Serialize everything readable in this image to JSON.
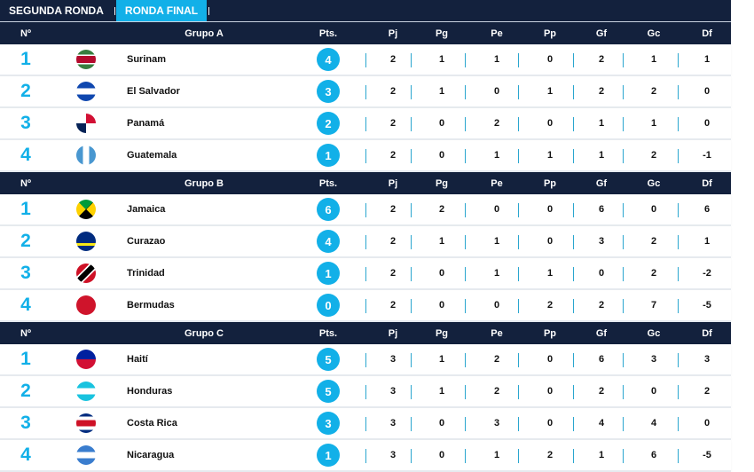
{
  "tabs": [
    {
      "label": "SEGUNDA RONDA",
      "active": false
    },
    {
      "label": "RONDA FINAL",
      "active": true
    }
  ],
  "columns": {
    "no": "Nº",
    "pts": "Pts.",
    "pj": "Pj",
    "pg": "Pg",
    "pe": "Pe",
    "pp": "Pp",
    "gf": "Gf",
    "gc": "Gc",
    "df": "Df"
  },
  "colors": {
    "header": "#13213d",
    "accent": "#12b0e8"
  },
  "groups": [
    {
      "name": "Grupo A",
      "rows": [
        {
          "pos": "1",
          "flag": "suriname-flag",
          "team": "Surinam",
          "pts": "4",
          "pj": "2",
          "pg": "1",
          "pe": "1",
          "pp": "0",
          "gf": "2",
          "gc": "1",
          "df": "1"
        },
        {
          "pos": "2",
          "flag": "el-salvador-flag",
          "team": "El Salvador",
          "pts": "3",
          "pj": "2",
          "pg": "1",
          "pe": "0",
          "pp": "1",
          "gf": "2",
          "gc": "2",
          "df": "0"
        },
        {
          "pos": "3",
          "flag": "panama-flag",
          "team": "Panamá",
          "pts": "2",
          "pj": "2",
          "pg": "0",
          "pe": "2",
          "pp": "0",
          "gf": "1",
          "gc": "1",
          "df": "0"
        },
        {
          "pos": "4",
          "flag": "guatemala-flag",
          "team": "Guatemala",
          "pts": "1",
          "pj": "2",
          "pg": "0",
          "pe": "1",
          "pp": "1",
          "gf": "1",
          "gc": "2",
          "df": "-1"
        }
      ]
    },
    {
      "name": "Grupo B",
      "rows": [
        {
          "pos": "1",
          "flag": "jamaica-flag",
          "team": "Jamaica",
          "pts": "6",
          "pj": "2",
          "pg": "2",
          "pe": "0",
          "pp": "0",
          "gf": "6",
          "gc": "0",
          "df": "6"
        },
        {
          "pos": "2",
          "flag": "curacao-flag",
          "team": "Curazao",
          "pts": "4",
          "pj": "2",
          "pg": "1",
          "pe": "1",
          "pp": "0",
          "gf": "3",
          "gc": "2",
          "df": "1"
        },
        {
          "pos": "3",
          "flag": "trinidad-flag",
          "team": "Trinidad",
          "pts": "1",
          "pj": "2",
          "pg": "0",
          "pe": "1",
          "pp": "1",
          "gf": "0",
          "gc": "2",
          "df": "-2"
        },
        {
          "pos": "4",
          "flag": "bermuda-flag",
          "team": "Bermudas",
          "pts": "0",
          "pj": "2",
          "pg": "0",
          "pe": "0",
          "pp": "2",
          "gf": "2",
          "gc": "7",
          "df": "-5"
        }
      ]
    },
    {
      "name": "Grupo C",
      "rows": [
        {
          "pos": "1",
          "flag": "haiti-flag",
          "team": "Haití",
          "pts": "5",
          "pj": "3",
          "pg": "1",
          "pe": "2",
          "pp": "0",
          "gf": "6",
          "gc": "3",
          "df": "3"
        },
        {
          "pos": "2",
          "flag": "honduras-flag",
          "team": "Honduras",
          "pts": "5",
          "pj": "3",
          "pg": "1",
          "pe": "2",
          "pp": "0",
          "gf": "2",
          "gc": "0",
          "df": "2"
        },
        {
          "pos": "3",
          "flag": "costa-rica-flag",
          "team": "Costa Rica",
          "pts": "3",
          "pj": "3",
          "pg": "0",
          "pe": "3",
          "pp": "0",
          "gf": "4",
          "gc": "4",
          "df": "0"
        },
        {
          "pos": "4",
          "flag": "nicaragua-flag",
          "team": "Nicaragua",
          "pts": "1",
          "pj": "3",
          "pg": "0",
          "pe": "1",
          "pp": "2",
          "gf": "1",
          "gc": "6",
          "df": "-5"
        }
      ]
    }
  ]
}
